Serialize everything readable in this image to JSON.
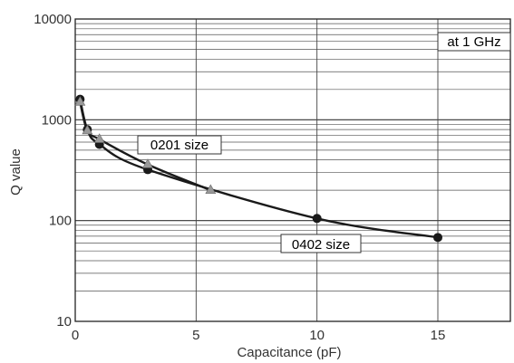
{
  "chart_data": {
    "type": "line",
    "xlabel": "Capacitance (pF)",
    "ylabel": "Q value",
    "xlim": [
      0,
      18
    ],
    "ylim": [
      10,
      10000
    ],
    "yscale": "log",
    "grid": true,
    "x_ticks": [
      0,
      5,
      10,
      15
    ],
    "x_tick_labels": [
      "0",
      "5",
      "10",
      "15"
    ],
    "y_ticks": [
      10,
      100,
      1000,
      10000
    ],
    "y_tick_labels": [
      "10",
      "100",
      "1000",
      "10000"
    ],
    "series": [
      {
        "name": "0402 size",
        "marker": "circle",
        "color": "#1a1a1a",
        "x": [
          0.2,
          0.5,
          1.0,
          3.0,
          10.0,
          15.0
        ],
        "y": [
          1600,
          800,
          570,
          320,
          105,
          68
        ]
      },
      {
        "name": "0201 size",
        "marker": "triangle",
        "color": "#999999",
        "x": [
          0.2,
          0.5,
          1.0,
          3.0,
          5.6
        ],
        "y": [
          1500,
          780,
          640,
          360,
          200
        ]
      }
    ],
    "annotations": [
      "at 1 GHz",
      "0201 size",
      "0402 size"
    ]
  }
}
